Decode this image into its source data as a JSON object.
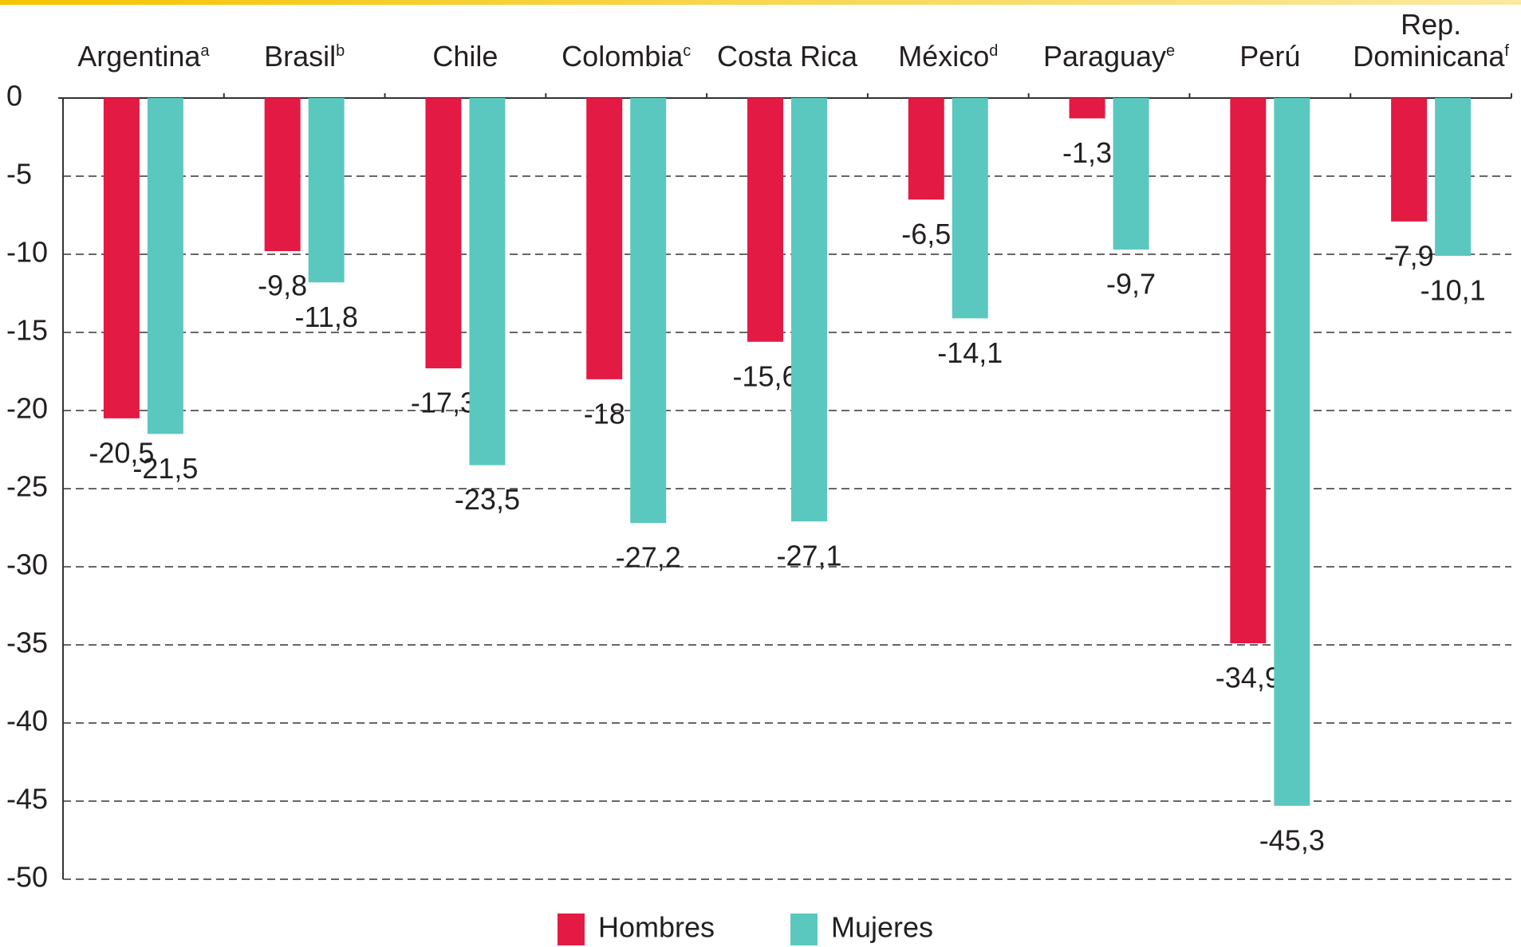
{
  "chart_data": {
    "type": "bar",
    "categories": [
      "Argentina",
      "Brasil",
      "Chile",
      "Colombia",
      "Costa Rica",
      "México",
      "Paraguay",
      "Perú",
      "Rep. Dominicana"
    ],
    "category_notes": [
      "a",
      "b",
      null,
      "c",
      null,
      "d",
      "e",
      null,
      "f"
    ],
    "series": [
      {
        "name": "Hombres",
        "color": "#e31a43",
        "values": [
          -20.5,
          -9.8,
          -17.3,
          -18,
          -15.6,
          -6.5,
          -1.3,
          -34.9,
          -7.9
        ],
        "value_labels": [
          "-20,5",
          "-9,8",
          "-17,3",
          "-18",
          "-15,6",
          "-6,5",
          "-1,3",
          "-34,9",
          "-7,9"
        ]
      },
      {
        "name": "Mujeres",
        "color": "#5bc8c0",
        "values": [
          -21.5,
          -11.8,
          -23.5,
          -27.2,
          -27.1,
          -14.1,
          -9.7,
          -45.3,
          -10.1
        ],
        "value_labels": [
          "-21,5",
          "-11,8",
          "-23,5",
          "-27,2",
          "-27,1",
          "-14,1",
          "-9,7",
          "-45,3",
          "-10,1"
        ]
      }
    ],
    "ylim": [
      -50,
      0
    ],
    "yticks": [
      0,
      -5,
      -10,
      -15,
      -20,
      -25,
      -30,
      -35,
      -40,
      -45,
      -50
    ],
    "grid": true
  }
}
